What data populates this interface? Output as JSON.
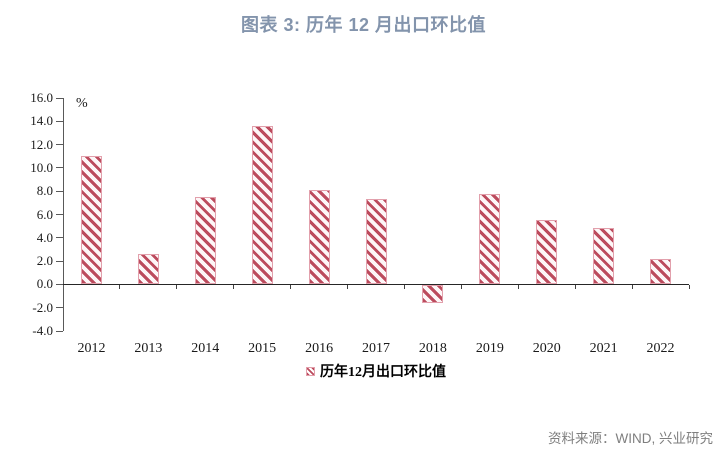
{
  "title": "图表 3: 历年 12 月出口环比值",
  "source_note": "资料来源：WIND, 兴业研究",
  "chart_data": {
    "type": "bar",
    "title": "图表 3: 历年 12 月出口环比值",
    "categories": [
      "2012",
      "2013",
      "2014",
      "2015",
      "2016",
      "2017",
      "2018",
      "2019",
      "2020",
      "2021",
      "2022"
    ],
    "values": [
      11.0,
      2.6,
      7.5,
      13.6,
      8.1,
      7.3,
      -1.5,
      7.8,
      5.5,
      4.8,
      2.2
    ],
    "unit_label": "%",
    "xlabel": "",
    "ylabel": "",
    "ylim": [
      -4.0,
      16.0
    ],
    "ytick_step": 2.0,
    "ytick_labels": [
      "16.0",
      "14.0",
      "12.0",
      "10.0",
      "8.0",
      "6.0",
      "4.0",
      "2.0",
      "0.0",
      "-2.0",
      "-4.0"
    ],
    "grid": false,
    "legend": "历年12月出口环比值",
    "legend_position": "bottom",
    "bar_style": "diagonal-hatch",
    "bar_color": "#bc4b5d",
    "bar_border_color": "#e2a0ac"
  },
  "colors": {
    "title": "#8394ac",
    "source": "#7f7f7f",
    "axis": "#595959",
    "zero_line": "#262626"
  }
}
